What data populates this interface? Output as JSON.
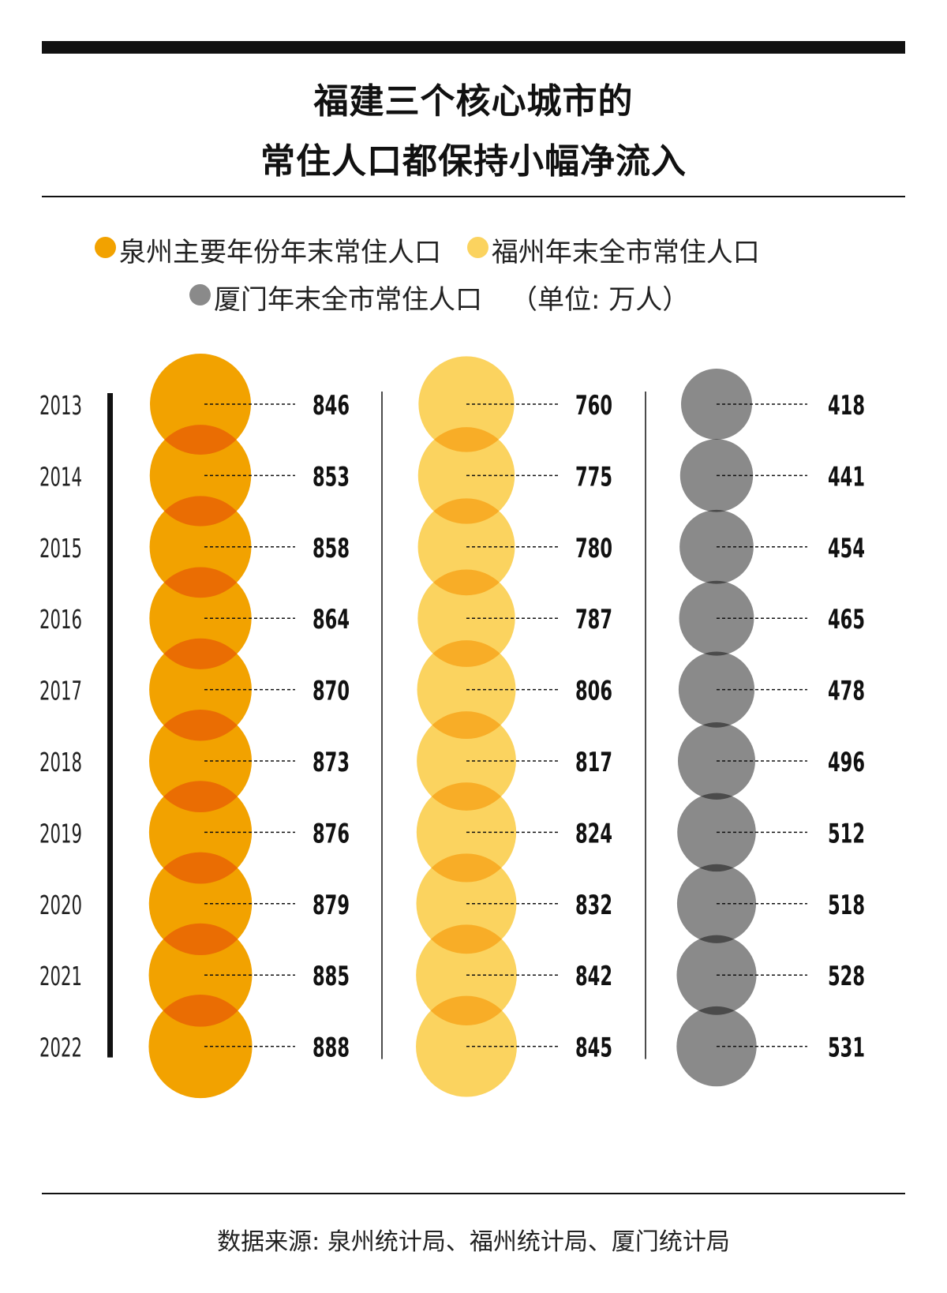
{
  "header": {
    "title_line1": "福建三个核心城市的",
    "title_line2": "常住人口都保持小幅净流入"
  },
  "legend": {
    "items": [
      {
        "label": "泉州主要年份年末常住人口",
        "color": "#f2a200"
      },
      {
        "label": "福州年末全市常住人口",
        "color": "#fbd35f"
      },
      {
        "label": "厦门年末全市常住人口",
        "color": "#8a8a8a"
      }
    ],
    "unit": "（单位: 万人）"
  },
  "footer": {
    "source": "数据来源: 泉州统计局、福州统计局、厦门统计局"
  },
  "chart_data": {
    "type": "bubble",
    "categories": [
      "2013",
      "2014",
      "2015",
      "2016",
      "2017",
      "2018",
      "2019",
      "2020",
      "2021",
      "2022"
    ],
    "series": [
      {
        "name": "泉州主要年份年末常住人口",
        "color": "#f2a200",
        "overlap_color": "#ea6d03",
        "values": [
          846,
          853,
          858,
          864,
          870,
          873,
          876,
          879,
          885,
          888
        ]
      },
      {
        "name": "福州年末全市常住人口",
        "color": "#fbd35f",
        "overlap_color": "#f8ad27",
        "values": [
          760,
          775,
          780,
          787,
          806,
          817,
          824,
          832,
          842,
          845
        ]
      },
      {
        "name": "厦门年末全市常住人口",
        "color": "#8a8a8a",
        "overlap_color": "#4b4b4b",
        "values": [
          418,
          441,
          454,
          465,
          478,
          496,
          512,
          518,
          528,
          531
        ]
      }
    ]
  }
}
